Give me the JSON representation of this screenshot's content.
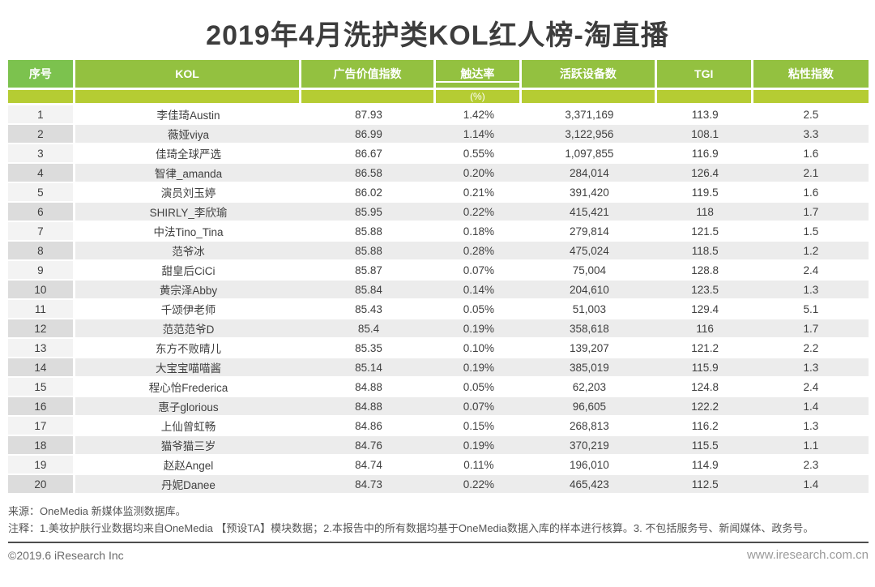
{
  "title": "2019年4月洗护类KOL红人榜-淘直播",
  "chart_data": {
    "type": "table",
    "title": "2019年4月洗护类KOL红人榜-淘直播",
    "columns": [
      "序号",
      "KOL",
      "广告价值指数",
      "触达率",
      "活跃设备数",
      "TGI",
      "粘性指数"
    ],
    "subunits": [
      "",
      "",
      "",
      "(%)",
      "",
      "",
      ""
    ],
    "rows": [
      [
        "1",
        "李佳琦Austin",
        "87.93",
        "1.42%",
        "3,371,169",
        "113.9",
        "2.5"
      ],
      [
        "2",
        "薇娅viya",
        "86.99",
        "1.14%",
        "3,122,956",
        "108.1",
        "3.3"
      ],
      [
        "3",
        "佳琦全球严选",
        "86.67",
        "0.55%",
        "1,097,855",
        "116.9",
        "1.6"
      ],
      [
        "4",
        "智律_amanda",
        "86.58",
        "0.20%",
        "284,014",
        "126.4",
        "2.1"
      ],
      [
        "5",
        "演员刘玉婷",
        "86.02",
        "0.21%",
        "391,420",
        "119.5",
        "1.6"
      ],
      [
        "6",
        "SHIRLY_李欣瑜",
        "85.95",
        "0.22%",
        "415,421",
        "118",
        "1.7"
      ],
      [
        "7",
        "中法Tino_Tina",
        "85.88",
        "0.18%",
        "279,814",
        "121.5",
        "1.5"
      ],
      [
        "8",
        "范爷冰",
        "85.88",
        "0.28%",
        "475,024",
        "118.5",
        "1.2"
      ],
      [
        "9",
        "甜皇后CiCi",
        "85.87",
        "0.07%",
        "75,004",
        "128.8",
        "2.4"
      ],
      [
        "10",
        "黄宗泽Abby",
        "85.84",
        "0.14%",
        "204,610",
        "123.5",
        "1.3"
      ],
      [
        "11",
        "千颂伊老师",
        "85.43",
        "0.05%",
        "51,003",
        "129.4",
        "5.1"
      ],
      [
        "12",
        "范范范爷D",
        "85.4",
        "0.19%",
        "358,618",
        "116",
        "1.7"
      ],
      [
        "13",
        "东方不败晴儿",
        "85.35",
        "0.10%",
        "139,207",
        "121.2",
        "2.2"
      ],
      [
        "14",
        "大宝宝喵喵酱",
        "85.14",
        "0.19%",
        "385,019",
        "115.9",
        "1.3"
      ],
      [
        "15",
        "程心怡Frederica",
        "84.88",
        "0.05%",
        "62,203",
        "124.8",
        "2.4"
      ],
      [
        "16",
        "惠子glorious",
        "84.88",
        "0.07%",
        "96,605",
        "122.2",
        "1.4"
      ],
      [
        "17",
        "上仙曾虹畅",
        "84.86",
        "0.15%",
        "268,813",
        "116.2",
        "1.3"
      ],
      [
        "18",
        "猫爷猫三岁",
        "84.76",
        "0.19%",
        "370,219",
        "115.5",
        "1.1"
      ],
      [
        "19",
        "赵赵Angel",
        "84.74",
        "0.11%",
        "196,010",
        "114.9",
        "2.3"
      ],
      [
        "20",
        "丹妮Danee",
        "84.73",
        "0.22%",
        "465,423",
        "112.5",
        "1.4"
      ]
    ]
  },
  "footer": {
    "source": "来源：OneMedia 新媒体监测数据库。",
    "note": "注释：1.美妆护肤行业数据均来自OneMedia 【预设TA】模块数据；2.本报告中的所有数据均基于OneMedia数据入库的样本进行核算。3. 不包括服务号、新闻媒体、政务号。",
    "copyright": "©2019.6 iResearch Inc",
    "website": "www.iresearch.com.cn"
  },
  "colors": {
    "header_index_green": "#7cc24e",
    "header_olive_green": "#93c140",
    "subheader_yellow_green": "#b5cc33",
    "row_shade_gray": "#ececec",
    "index_col_light": "#f3f3f3",
    "index_col_dark": "#dcdcdc"
  }
}
